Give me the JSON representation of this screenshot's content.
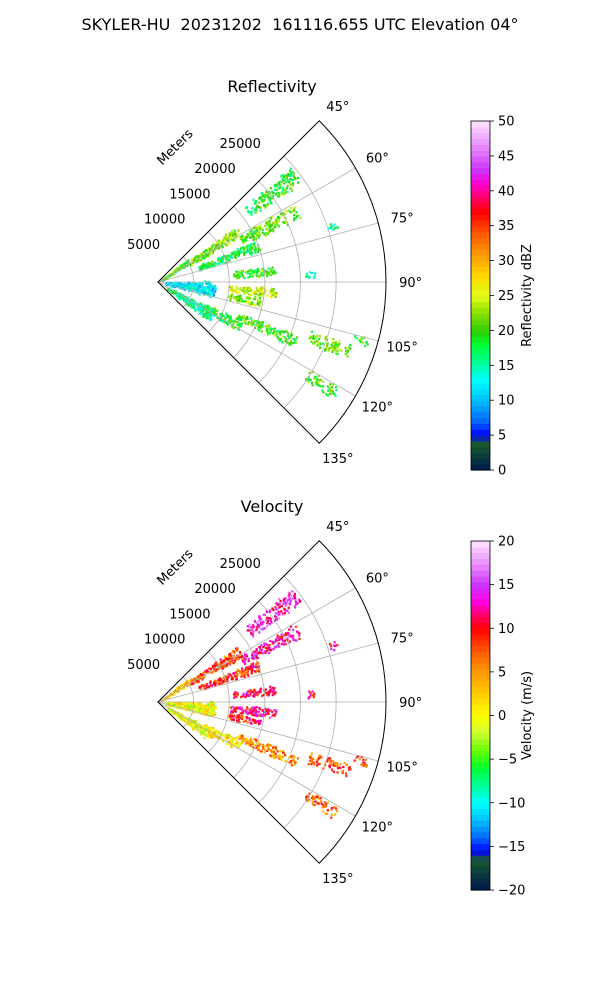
{
  "figure": {
    "title": "SKYLER-HU  20231202  161116.655 UTC Elevation 04°"
  },
  "chart_data": [
    {
      "type": "heatmap",
      "subtype": "polar-sector",
      "title": "Reflectivity",
      "radial_label": "Meters",
      "radial_ticks": [
        "5000",
        "10000",
        "15000",
        "20000",
        "25000"
      ],
      "radial_tick_values": [
        5000,
        10000,
        15000,
        20000,
        25000
      ],
      "radial_max": 32000,
      "angular_ticks": [
        "45°",
        "60°",
        "75°",
        "90°",
        "105°",
        "120°",
        "135°"
      ],
      "angular_tick_values": [
        45,
        60,
        75,
        90,
        105,
        120,
        135
      ],
      "theta_range": [
        45,
        135
      ],
      "grid": true,
      "colorbar": {
        "label": "Reflectivity dBZ",
        "min": 0,
        "max": 50,
        "ticks": [
          "0",
          "5",
          "10",
          "15",
          "20",
          "25",
          "30",
          "35",
          "40",
          "45",
          "50"
        ],
        "tick_values": [
          0,
          5,
          10,
          15,
          20,
          25,
          30,
          35,
          40,
          45,
          50
        ],
        "stops": [
          {
            "v": 0,
            "c": "#001a4d"
          },
          {
            "v": 2,
            "c": "#0a3d3d"
          },
          {
            "v": 4,
            "c": "#1a5c2e"
          },
          {
            "v": 5,
            "c": "#0000ff"
          },
          {
            "v": 7,
            "c": "#0066ff"
          },
          {
            "v": 10,
            "c": "#00bfff"
          },
          {
            "v": 13,
            "c": "#00ffff"
          },
          {
            "v": 15,
            "c": "#00ffaa"
          },
          {
            "v": 18,
            "c": "#00ff33"
          },
          {
            "v": 20,
            "c": "#33cc00"
          },
          {
            "v": 23,
            "c": "#99e600"
          },
          {
            "v": 25,
            "c": "#e6ff1a"
          },
          {
            "v": 28,
            "c": "#ffd500"
          },
          {
            "v": 31,
            "c": "#ff9900"
          },
          {
            "v": 34,
            "c": "#ff5500"
          },
          {
            "v": 37,
            "c": "#ff0000"
          },
          {
            "v": 39,
            "c": "#ff0066"
          },
          {
            "v": 41,
            "c": "#ff00cc"
          },
          {
            "v": 43,
            "c": "#cc33ff"
          },
          {
            "v": 46,
            "c": "#e680ff"
          },
          {
            "v": 48,
            "c": "#f0b3ff"
          },
          {
            "v": 50,
            "c": "#ffe6ff"
          }
        ]
      },
      "echoes": [
        {
          "az": 52,
          "r0": 16000,
          "r1": 24500,
          "w": 3.5,
          "v": 19
        },
        {
          "az": 63,
          "r0": 13000,
          "r1": 22000,
          "w": 3.2,
          "v": 21
        },
        {
          "az": 58,
          "r0": 5000,
          "r1": 13500,
          "w": 4.2,
          "v": 22
        },
        {
          "az": 55,
          "r0": 600,
          "r1": 5200,
          "w": 4.5,
          "v": 20
        },
        {
          "az": 70,
          "r0": 6000,
          "r1": 15000,
          "w": 3.5,
          "v": 18
        },
        {
          "az": 84,
          "r0": 10500,
          "r1": 16500,
          "w": 2.8,
          "v": 20
        },
        {
          "az": 95,
          "r0": 10000,
          "r1": 16500,
          "w": 3.0,
          "v": 24
        },
        {
          "az": 101,
          "r0": 10000,
          "r1": 14500,
          "w": 3.0,
          "v": 22
        },
        {
          "az": 113,
          "r0": 12000,
          "r1": 21000,
          "w": 2.8,
          "v": 20
        },
        {
          "az": 118,
          "r0": 7000,
          "r1": 13000,
          "w": 4.0,
          "v": 19
        },
        {
          "az": 110,
          "r0": 22500,
          "r1": 28500,
          "w": 2.5,
          "v": 21
        },
        {
          "az": 122,
          "r0": 24500,
          "r1": 29500,
          "w": 2.0,
          "v": 20
        },
        {
          "az": 106,
          "r0": 28500,
          "r1": 30500,
          "w": 1.5,
          "v": 20
        },
        {
          "az": 72,
          "r0": 25000,
          "r1": 26500,
          "w": 1.5,
          "v": 17
        },
        {
          "az": 87,
          "r0": 20500,
          "r1": 22000,
          "w": 1.5,
          "v": 15
        },
        {
          "az": 97,
          "r0": 1000,
          "r1": 8000,
          "w": 9.0,
          "v": 12
        },
        {
          "az": 122,
          "r0": 1500,
          "r1": 9000,
          "w": 6.0,
          "v": 16
        }
      ]
    },
    {
      "type": "heatmap",
      "subtype": "polar-sector",
      "title": "Velocity",
      "radial_label": "Meters",
      "radial_ticks": [
        "5000",
        "10000",
        "15000",
        "20000",
        "25000"
      ],
      "radial_tick_values": [
        5000,
        10000,
        15000,
        20000,
        25000
      ],
      "radial_max": 32000,
      "angular_ticks": [
        "45°",
        "60°",
        "75°",
        "90°",
        "105°",
        "120°",
        "135°"
      ],
      "angular_tick_values": [
        45,
        60,
        75,
        90,
        105,
        120,
        135
      ],
      "theta_range": [
        45,
        135
      ],
      "grid": true,
      "colorbar": {
        "label": "Velocity (m/s)",
        "min": -20,
        "max": 20,
        "ticks": [
          "−20",
          "−15",
          "−10",
          "−5",
          "0",
          "5",
          "10",
          "15",
          "20"
        ],
        "tick_values": [
          -20,
          -15,
          -10,
          -5,
          0,
          5,
          10,
          15,
          20
        ],
        "stops": [
          {
            "v": -20,
            "c": "#001a4d"
          },
          {
            "v": -18,
            "c": "#0a3d3d"
          },
          {
            "v": -16.5,
            "c": "#1a5c2e"
          },
          {
            "v": -15.5,
            "c": "#0000ff"
          },
          {
            "v": -14,
            "c": "#0066ff"
          },
          {
            "v": -12,
            "c": "#00bfff"
          },
          {
            "v": -10,
            "c": "#00ffff"
          },
          {
            "v": -8,
            "c": "#00ff99"
          },
          {
            "v": -6,
            "c": "#00ff33"
          },
          {
            "v": -4,
            "c": "#66ff00"
          },
          {
            "v": -2,
            "c": "#ccff33"
          },
          {
            "v": 0,
            "c": "#ffff00"
          },
          {
            "v": 2.5,
            "c": "#ffcc00"
          },
          {
            "v": 5,
            "c": "#ff9900"
          },
          {
            "v": 7.5,
            "c": "#ff5500"
          },
          {
            "v": 10,
            "c": "#ff0000"
          },
          {
            "v": 11.5,
            "c": "#ff0066"
          },
          {
            "v": 13,
            "c": "#ff00dd"
          },
          {
            "v": 15,
            "c": "#cc33ff"
          },
          {
            "v": 17,
            "c": "#e680ff"
          },
          {
            "v": 18.5,
            "c": "#f0b3ff"
          },
          {
            "v": 20,
            "c": "#ffe6ff"
          }
        ]
      },
      "echoes": [
        {
          "az": 52,
          "r0": 16000,
          "r1": 24500,
          "w": 3.5,
          "v": 14
        },
        {
          "az": 63,
          "r0": 13000,
          "r1": 22000,
          "w": 3.2,
          "v": 12
        },
        {
          "az": 58,
          "r0": 5000,
          "r1": 13500,
          "w": 4.2,
          "v": 8
        },
        {
          "az": 55,
          "r0": 600,
          "r1": 5200,
          "w": 4.5,
          "v": 3
        },
        {
          "az": 70,
          "r0": 6000,
          "r1": 15000,
          "w": 3.5,
          "v": 9
        },
        {
          "az": 84,
          "r0": 10500,
          "r1": 16500,
          "w": 2.8,
          "v": 11
        },
        {
          "az": 95,
          "r0": 10000,
          "r1": 16500,
          "w": 3.0,
          "v": 12
        },
        {
          "az": 101,
          "r0": 10000,
          "r1": 14500,
          "w": 3.0,
          "v": 10
        },
        {
          "az": 113,
          "r0": 12000,
          "r1": 21000,
          "w": 2.8,
          "v": 5
        },
        {
          "az": 118,
          "r0": 7000,
          "r1": 13000,
          "w": 4.0,
          "v": 1
        },
        {
          "az": 110,
          "r0": 22500,
          "r1": 28500,
          "w": 2.5,
          "v": 8
        },
        {
          "az": 122,
          "r0": 24500,
          "r1": 29500,
          "w": 2.0,
          "v": 7
        },
        {
          "az": 106,
          "r0": 28500,
          "r1": 30500,
          "w": 1.5,
          "v": 8
        },
        {
          "az": 72,
          "r0": 25000,
          "r1": 26500,
          "w": 1.5,
          "v": 11
        },
        {
          "az": 87,
          "r0": 20500,
          "r1": 22000,
          "w": 1.5,
          "v": 10
        },
        {
          "az": 97,
          "r0": 1000,
          "r1": 8000,
          "w": 9.0,
          "v": 0
        },
        {
          "az": 122,
          "r0": 1500,
          "r1": 9000,
          "w": 6.0,
          "v": 0
        }
      ]
    }
  ]
}
